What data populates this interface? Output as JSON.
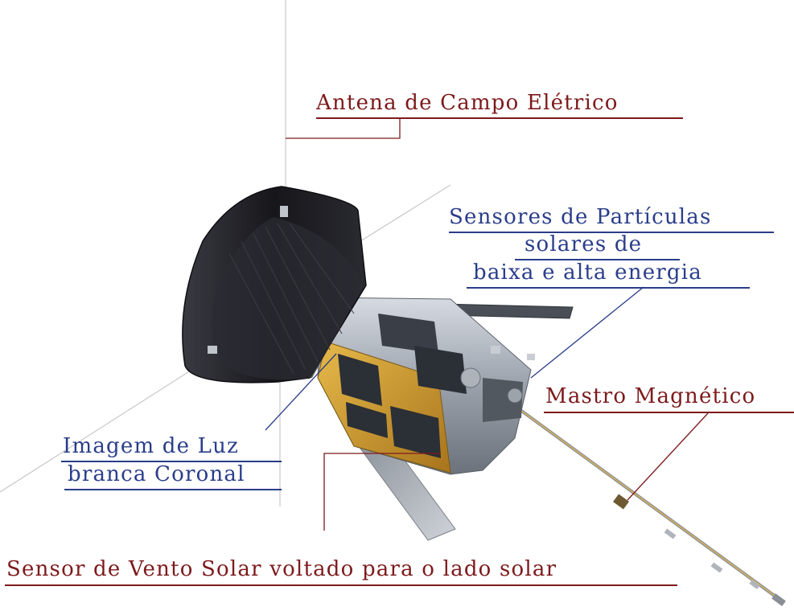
{
  "labels": {
    "electric_antenna": "Antena de Campo Elétrico",
    "particle_sensors_line1": "Sensores de Partículas",
    "particle_sensors_line2": "solares de",
    "particle_sensors_line3": "baixa e alta energia",
    "magnetic_mast": "Mastro Magnético",
    "coronal_imager_line1": "Imagem de Luz",
    "coronal_imager_line2": "branca Coronal",
    "solar_wind_sensor": "Sensor de Vento Solar voltado para o lado solar"
  },
  "colors": {
    "label_red": "#7d1a1c",
    "label_blue": "#2a3d8a",
    "heat_shield": "#1c1c22",
    "bus_gold": "#c9962e",
    "bus_silver": "#b9bec6"
  }
}
